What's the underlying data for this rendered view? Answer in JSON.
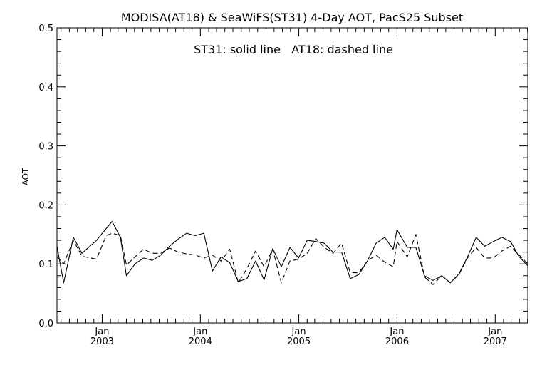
{
  "chart_data": {
    "type": "line",
    "title": "MODISA(AT18) & SeaWiFS(ST31) 4-Day AOT, PacS25 Subset",
    "annotation": "ST31: solid line   AT18: dashed line",
    "xlabel": "",
    "ylabel": "AOT",
    "xlim": [
      "2002-07-17",
      "2007-05-02"
    ],
    "ylim": [
      0.0,
      0.5
    ],
    "yticks": [
      "0.0",
      "0.1",
      "0.2",
      "0.3",
      "0.4",
      "0.5"
    ],
    "xticks": [
      {
        "date": "2003-01-01",
        "month": "Jan",
        "year": "2003"
      },
      {
        "date": "2004-01-01",
        "month": "Jan",
        "year": "2004"
      },
      {
        "date": "2005-01-01",
        "month": "Jan",
        "year": "2005"
      },
      {
        "date": "2006-01-01",
        "month": "Jan",
        "year": "2006"
      },
      {
        "date": "2007-01-01",
        "month": "Jan",
        "year": "2007"
      }
    ],
    "grid": false,
    "legend": "none",
    "series": [
      {
        "name": "ST31",
        "style": "solid",
        "x": [
          "2002-07-17",
          "2002-08-11",
          "2002-09-16",
          "2002-10-18",
          "2002-12-11",
          "2003-01-16",
          "2003-02-07",
          "2003-03-10",
          "2003-04-01",
          "2003-05-03",
          "2003-06-04",
          "2003-07-06",
          "2003-08-07",
          "2003-09-08",
          "2003-10-10",
          "2003-11-11",
          "2003-12-13",
          "2004-01-14",
          "2004-02-15",
          "2004-03-18",
          "2004-04-19",
          "2004-05-21",
          "2004-06-22",
          "2004-07-24",
          "2004-08-25",
          "2004-09-26",
          "2004-10-28",
          "2004-11-29",
          "2004-12-31",
          "2005-02-01",
          "2005-03-05",
          "2005-04-06",
          "2005-05-08",
          "2005-06-09",
          "2005-07-11",
          "2005-08-12",
          "2005-09-13",
          "2005-10-15",
          "2005-11-16",
          "2005-12-18",
          "2006-01-01",
          "2006-02-08",
          "2006-03-12",
          "2006-04-13",
          "2006-05-15",
          "2006-06-16",
          "2006-07-18",
          "2006-08-19",
          "2006-09-20",
          "2006-10-22",
          "2006-11-23",
          "2006-12-25",
          "2007-01-26",
          "2007-02-27",
          "2007-03-31",
          "2007-05-02"
        ],
        "y": [
          0.13,
          0.068,
          0.145,
          0.118,
          0.14,
          0.16,
          0.172,
          0.145,
          0.08,
          0.1,
          0.11,
          0.106,
          0.115,
          0.13,
          0.142,
          0.152,
          0.148,
          0.152,
          0.088,
          0.112,
          0.102,
          0.07,
          0.075,
          0.105,
          0.073,
          0.126,
          0.095,
          0.128,
          0.11,
          0.14,
          0.138,
          0.135,
          0.12,
          0.12,
          0.075,
          0.082,
          0.105,
          0.135,
          0.145,
          0.125,
          0.158,
          0.128,
          0.128,
          0.08,
          0.072,
          0.08,
          0.068,
          0.083,
          0.112,
          0.145,
          0.13,
          0.138,
          0.145,
          0.138,
          0.112,
          0.097
        ]
      },
      {
        "name": "AT18",
        "style": "dashed",
        "x": [
          "2002-07-17",
          "2002-08-11",
          "2002-09-16",
          "2002-10-18",
          "2002-12-11",
          "2003-01-16",
          "2003-02-07",
          "2003-03-10",
          "2003-04-01",
          "2003-05-03",
          "2003-06-04",
          "2003-07-06",
          "2003-08-07",
          "2003-09-08",
          "2003-10-10",
          "2003-11-11",
          "2003-12-13",
          "2004-01-14",
          "2004-02-15",
          "2004-03-18",
          "2004-04-19",
          "2004-05-21",
          "2004-06-22",
          "2004-07-24",
          "2004-08-25",
          "2004-09-26",
          "2004-10-28",
          "2004-11-29",
          "2004-12-31",
          "2005-02-01",
          "2005-03-05",
          "2005-04-06",
          "2005-05-08",
          "2005-06-09",
          "2005-07-11",
          "2005-08-12",
          "2005-09-13",
          "2005-10-15",
          "2005-11-16",
          "2005-12-18",
          "2006-01-01",
          "2006-02-08",
          "2006-03-12",
          "2006-04-13",
          "2006-05-15",
          "2006-06-16",
          "2006-07-18",
          "2006-08-19",
          "2006-09-20",
          "2006-10-22",
          "2006-11-23",
          "2006-12-25",
          "2007-01-26",
          "2007-02-27",
          "2007-03-31",
          "2007-05-02"
        ],
        "y": [
          0.112,
          0.1,
          0.14,
          0.113,
          0.108,
          0.148,
          0.152,
          0.148,
          0.098,
          0.112,
          0.125,
          0.118,
          0.118,
          0.127,
          0.12,
          0.117,
          0.115,
          0.11,
          0.115,
          0.105,
          0.125,
          0.068,
          0.092,
          0.122,
          0.095,
          0.125,
          0.068,
          0.105,
          0.108,
          0.118,
          0.143,
          0.128,
          0.118,
          0.135,
          0.085,
          0.085,
          0.105,
          0.115,
          0.103,
          0.095,
          0.138,
          0.112,
          0.15,
          0.078,
          0.065,
          0.08,
          0.068,
          0.082,
          0.11,
          0.128,
          0.11,
          0.11,
          0.122,
          0.13,
          0.115,
          0.1
        ]
      }
    ]
  }
}
